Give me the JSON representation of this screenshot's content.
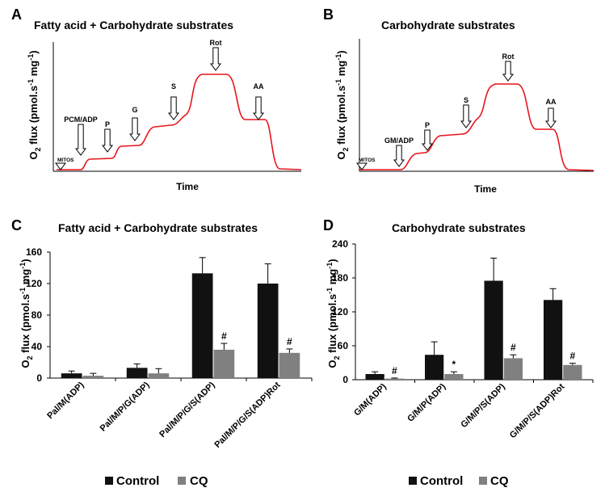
{
  "traces": [
    {
      "panel": "A",
      "title": "Fatty acid + Carbohydrate substrates",
      "ylabel_main": "O",
      "ylabel_sub": "2",
      "ylabel_rest": " flux (pmol.s",
      "ylabel_sup1": "-1",
      "ylabel_mid": " mg",
      "ylabel_sup2": "-1",
      "ylabel_end": ")",
      "xlabel": "Time",
      "start_label": "MITOS",
      "arrows": [
        "PCM/ADP",
        "P",
        "G",
        "S",
        "Rot",
        "AA"
      ],
      "line_color": "#e8141c"
    },
    {
      "panel": "B",
      "title": "Carbohydrate substrates",
      "ylabel_main": "O",
      "ylabel_sub": "2",
      "ylabel_rest": " flux (pmol.s",
      "ylabel_sup1": "-1",
      "ylabel_mid": " mg",
      "ylabel_sup2": "-1",
      "ylabel_end": ")",
      "xlabel": "Time",
      "start_label": "MITOS",
      "arrows": [
        "GM/ADP",
        "P",
        "S",
        "Rot",
        "AA"
      ],
      "line_color": "#e8141c"
    }
  ],
  "chart_data": [
    {
      "panel": "C",
      "type": "bar",
      "title": "Fatty acid + Carbohydrate substrates",
      "ylabel": "O2 flux (pmol.s-1 mg-1)",
      "ylabel_main": "O",
      "ylabel_sub": "2",
      "ylabel_rest": " flux (pmol.s",
      "ylabel_sup1": "-1",
      "ylabel_mid": " mg",
      "ylabel_sup2": "-1",
      "ylabel_end": ")",
      "categories": [
        "Pal/M(ADP)",
        "Pal/M/P/G(ADP)",
        "Pal/M/P/G/S(ADP)",
        "Pal/M/P/G/S(ADP)Rot"
      ],
      "series": [
        {
          "name": "Control",
          "values": [
            6,
            13,
            133,
            120
          ],
          "errors": [
            3,
            5,
            20,
            25
          ],
          "color": "#111111"
        },
        {
          "name": "CQ",
          "values": [
            3,
            6,
            36,
            32
          ],
          "errors": [
            3,
            6,
            8,
            5
          ],
          "color": "#808080"
        }
      ],
      "annotations": [
        {
          "series": "CQ",
          "category": 2,
          "text": "#"
        },
        {
          "series": "CQ",
          "category": 3,
          "text": "#"
        }
      ],
      "ylim": [
        0,
        160
      ],
      "yticks": [
        "0",
        "40",
        "80",
        "120",
        "160"
      ]
    },
    {
      "panel": "D",
      "type": "bar",
      "title": "Carbohydrate substrates",
      "ylabel": "O2 flux (pmol.s-1 mg-1)",
      "ylabel_main": "O",
      "ylabel_sub": "2",
      "ylabel_rest": " flux (pmol.s",
      "ylabel_sup1": "-1",
      "ylabel_mid": " mg",
      "ylabel_sup2": "-1",
      "ylabel_end": ")",
      "categories": [
        "G/M(ADP)",
        "G/M/P(ADP)",
        "G/M/P/S(ADP)",
        "G/M/P/S(ADP)Rot"
      ],
      "series": [
        {
          "name": "Control",
          "values": [
            10,
            44,
            175,
            141
          ],
          "errors": [
            4,
            23,
            40,
            20
          ],
          "color": "#111111"
        },
        {
          "name": "CQ",
          "values": [
            2,
            10,
            38,
            26
          ],
          "errors": [
            1,
            4,
            6,
            3
          ],
          "color": "#808080"
        }
      ],
      "annotations": [
        {
          "series": "CQ",
          "category": 0,
          "text": "#"
        },
        {
          "series": "CQ",
          "category": 1,
          "text": "*"
        },
        {
          "series": "CQ",
          "category": 2,
          "text": "#"
        },
        {
          "series": "CQ",
          "category": 3,
          "text": "#"
        }
      ],
      "ylim": [
        0,
        240
      ],
      "yticks": [
        "0",
        "60",
        "120",
        "180",
        "240"
      ]
    }
  ],
  "legend": [
    {
      "label": "Control",
      "color": "#111111"
    },
    {
      "label": "CQ",
      "color": "#808080"
    }
  ]
}
